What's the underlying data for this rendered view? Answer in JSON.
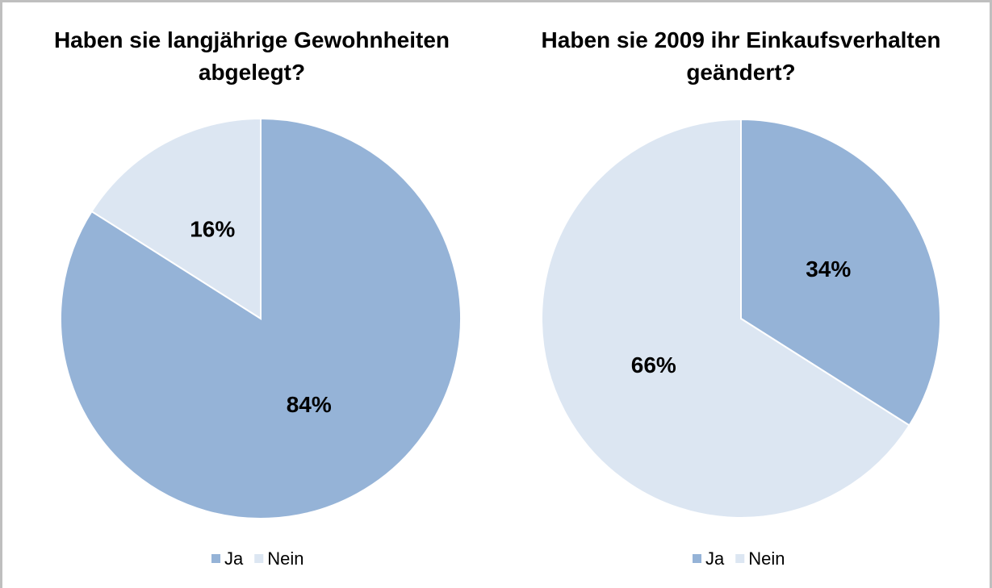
{
  "chart_data": [
    {
      "type": "pie",
      "title": "Haben sie langjährige Gewohnheiten abgelegt?",
      "categories": [
        "Ja",
        "Nein"
      ],
      "values": [
        84,
        16
      ],
      "value_labels": [
        "84%",
        "16%"
      ],
      "colors": [
        "#95b3d7",
        "#dce6f2"
      ],
      "legend": "bottom"
    },
    {
      "type": "pie",
      "title": "Haben sie 2009 ihr Einkaufsverhalten geändert?",
      "categories": [
        "Ja",
        "Nein"
      ],
      "values": [
        34,
        66
      ],
      "value_labels": [
        "34%",
        "66%"
      ],
      "colors": [
        "#95b3d7",
        "#dce6f2"
      ],
      "legend": "bottom"
    }
  ]
}
